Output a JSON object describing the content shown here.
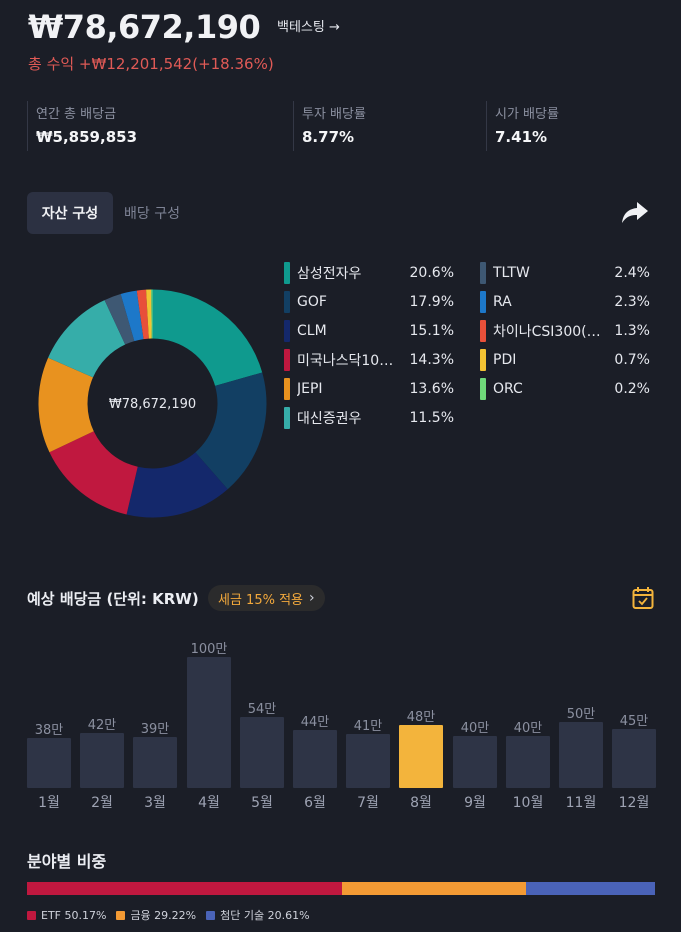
{
  "header": {
    "total_value": "₩78,672,190",
    "backtest_label": "백테스팅 →",
    "profit_text": "총 수익 +₩12,201,542(+18.36%)"
  },
  "stats": [
    {
      "label": "연간 총 배당금",
      "value": "₩5,859,853"
    },
    {
      "label": "투자 배당률",
      "value": "8.77%"
    },
    {
      "label": "시가 배당률",
      "value": "7.41%"
    }
  ],
  "tabs": {
    "active_label": "자산 구성",
    "inactive_label": "배당 구성"
  },
  "donut": {
    "center_label": "₩78,672,190"
  },
  "holdings": [
    {
      "name": "삼성전자우",
      "percent": "20.6%",
      "value": 20.6,
      "color": "#0f9a8e"
    },
    {
      "name": "GOF",
      "percent": "17.9%",
      "value": 17.9,
      "color": "#123f63"
    },
    {
      "name": "CLM",
      "percent": "15.1%",
      "value": 15.1,
      "color": "#14286b"
    },
    {
      "name": "미국나스닥10…",
      "percent": "14.3%",
      "value": 14.3,
      "color": "#c0183f"
    },
    {
      "name": "JEPI",
      "percent": "13.6%",
      "value": 13.6,
      "color": "#e8921f"
    },
    {
      "name": "대신증권우",
      "percent": "11.5%",
      "value": 11.5,
      "color": "#36ada9"
    },
    {
      "name": "TLTW",
      "percent": "2.4%",
      "value": 2.4,
      "color": "#3e5873"
    },
    {
      "name": "RA",
      "percent": "2.3%",
      "value": 2.3,
      "color": "#1d78c9"
    },
    {
      "name": "차이나CSI300(…",
      "percent": "1.3%",
      "value": 1.3,
      "color": "#e8503a"
    },
    {
      "name": "PDI",
      "percent": "0.7%",
      "value": 0.7,
      "color": "#f2c233"
    },
    {
      "name": "ORC",
      "percent": "0.2%",
      "value": 0.2,
      "color": "#6fd97a"
    }
  ],
  "dividends": {
    "title": "예상 배당금 (단위: KRW)",
    "tax_label": "세금 15% 적용",
    "tax_chevron": "›",
    "active_month_index": 7,
    "chart_data": {
      "type": "bar",
      "categories": [
        "1월",
        "2월",
        "3월",
        "4월",
        "5월",
        "6월",
        "7월",
        "8월",
        "9월",
        "10월",
        "11월",
        "12월"
      ],
      "values": [
        38,
        42,
        39,
        100,
        54,
        44,
        41,
        48,
        40,
        40,
        50,
        45
      ],
      "value_labels": [
        "38만",
        "42만",
        "39만",
        "100만",
        "54만",
        "44만",
        "41만",
        "48만",
        "40만",
        "40만",
        "50만",
        "45만"
      ],
      "unit": "만"
    }
  },
  "sectors": {
    "title": "분야별 비중",
    "items": [
      {
        "label": "ETF 50.17%",
        "value": 50.17,
        "color": "#c0183f"
      },
      {
        "label": "금융 29.22%",
        "value": 29.22,
        "color": "#f39a34"
      },
      {
        "label": "첨단 기술 20.61%",
        "value": 20.61,
        "color": "#4a63b8"
      }
    ]
  }
}
